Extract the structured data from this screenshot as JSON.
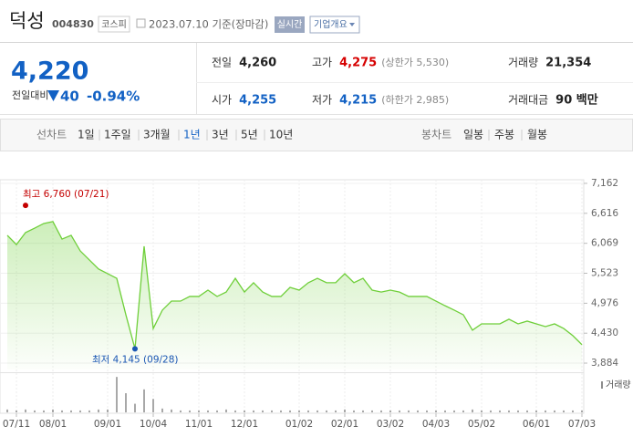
{
  "header": {
    "name": "덕성",
    "code": "004830",
    "market": "코스피",
    "date": "2023.07.10 기준(장마감)",
    "realtime": "실시간",
    "company_button": "기업개요"
  },
  "quote": {
    "price": "4,220",
    "change_label": "전일대비",
    "change": "40",
    "change_rate": "-0.94%",
    "color": "#1261c4"
  },
  "summary": [
    [
      {
        "label": "전일",
        "value": "4,260",
        "color": "#222"
      },
      {
        "label": "고가",
        "value": "4,275",
        "note": "(상한가 5,530)",
        "color": "#d60000"
      },
      {
        "label": "거래량",
        "value": "21,354",
        "color": "#222"
      }
    ],
    [
      {
        "label": "시가",
        "value": "4,255",
        "color": "#1261c4"
      },
      {
        "label": "저가",
        "value": "4,215",
        "note": "(하한가 2,985)",
        "color": "#1261c4"
      },
      {
        "label": "거래대금",
        "value": "90 백만",
        "color": "#222"
      }
    ]
  ],
  "tabs": {
    "line_label": "선차트",
    "line_periods": [
      "1일",
      "1주일",
      "3개월",
      "1년",
      "3년",
      "5년",
      "10년"
    ],
    "selected": 3,
    "candle_label": "봉차트",
    "candle_periods": [
      "일봉",
      "주봉",
      "월봉"
    ]
  },
  "chart_data": {
    "type": "line",
    "color": "#6fcf3a",
    "categories": [
      null,
      "07/11",
      null,
      null,
      null,
      "08/01",
      null,
      null,
      null,
      null,
      null,
      "09/01",
      null,
      null,
      null,
      null,
      "10/04",
      null,
      null,
      null,
      null,
      "11/01",
      null,
      null,
      null,
      null,
      "12/01",
      null,
      null,
      null,
      null,
      null,
      "01/02",
      null,
      null,
      null,
      null,
      "02/01",
      null,
      null,
      null,
      null,
      "03/02",
      null,
      null,
      null,
      null,
      "04/03",
      null,
      null,
      null,
      null,
      "05/02",
      null,
      null,
      null,
      null,
      null,
      "06/01",
      null,
      null,
      null,
      null,
      "07/03"
    ],
    "values": [
      6215,
      6045,
      6265,
      6345,
      6430,
      6465,
      6145,
      6215,
      5930,
      5765,
      5600,
      5515,
      5430,
      4765,
      4145,
      6015,
      4515,
      4850,
      5015,
      5015,
      5100,
      5100,
      5215,
      5100,
      5180,
      5430,
      5180,
      5350,
      5180,
      5100,
      5100,
      5265,
      5215,
      5350,
      5430,
      5350,
      5350,
      5515,
      5350,
      5430,
      5215,
      5180,
      5215,
      5180,
      5100,
      5100,
      5100,
      5015,
      4930,
      4850,
      4765,
      4485,
      4600,
      4600,
      4600,
      4685,
      4600,
      4650,
      4600,
      4550,
      4600,
      4515,
      4385,
      4220
    ],
    "ylim": [
      3768,
      7228
    ],
    "yticks": [
      {
        "value": 7162,
        "label": "7,162"
      },
      {
        "value": 6616,
        "label": "6,616"
      },
      {
        "value": 6069,
        "label": "6,069"
      },
      {
        "value": 5523,
        "label": "5,523"
      },
      {
        "value": 4976,
        "label": "4,976"
      },
      {
        "value": 4430,
        "label": "4,430"
      },
      {
        "value": 3884,
        "label": "3,884"
      }
    ],
    "grid": true,
    "annotations": [
      {
        "text": "최고 6,760 (07/21)",
        "value": 6760,
        "index": 2,
        "color": "#c40000"
      },
      {
        "text": "최저 4,145 (09/28)",
        "value": 4145,
        "index": 14,
        "color": "#1b57b3"
      }
    ],
    "volume": {
      "label": "거래량",
      "color": "#8c8c8c",
      "ylim": [
        0,
        40
      ],
      "values": [
        3,
        2,
        3,
        2,
        2,
        3,
        2,
        2,
        2,
        2,
        3,
        3,
        37,
        20,
        9,
        24,
        14,
        4,
        3,
        2,
        2,
        2,
        2,
        2,
        3,
        2,
        2,
        2,
        2,
        2,
        2,
        2,
        2,
        2,
        2,
        2,
        2,
        3,
        2,
        2,
        2,
        2,
        2,
        2,
        2,
        2,
        2,
        2,
        2,
        2,
        2,
        3,
        2,
        2,
        2,
        2,
        2,
        2,
        2,
        2,
        2,
        2,
        2,
        2
      ]
    }
  }
}
